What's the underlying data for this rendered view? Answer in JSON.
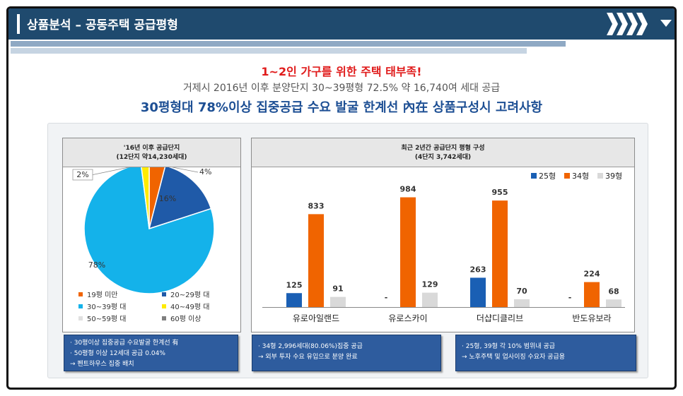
{
  "header": {
    "title": "상품분석 – 공동주택 공급평형"
  },
  "headline": {
    "line1": "1~2인 가구를 위한 주택 태부족!",
    "line2": "거제시 2016년 이후 분양단지 30~39평형 72.5% 약 16,740여 세대 공급",
    "line3": "30평형대 78%이상 집중공급 수요 발굴 한계선 內在  상품구성시 고려사항"
  },
  "colors": {
    "header_bg": "#1f4a6e",
    "blue": "#1a5fb4",
    "orange": "#f06400",
    "gray": "#d9d9d9",
    "sky": "#14b2ea",
    "yellow": "#ffeb00",
    "dark_blue": "#1f5aa8"
  },
  "chart_data": [
    {
      "type": "pie",
      "title_line1": "'16년 이후 공급단지",
      "title_line2": "(12단지 약14,230세대)",
      "slices": [
        {
          "name": "19평 미만",
          "value": 4,
          "label": "4%",
          "color": "#f06400"
        },
        {
          "name": "20~29평 대",
          "value": 16,
          "label": "16%",
          "color": "#1f5aa8"
        },
        {
          "name": "30~39평 대",
          "value": 78,
          "label": "78%",
          "color": "#14b2ea"
        },
        {
          "name": "40~49평 대",
          "value": 2,
          "label": "2%",
          "color": "#ffeb00"
        },
        {
          "name": "50~59평 대",
          "value": 0,
          "label": "",
          "color": "#e0e0e0"
        },
        {
          "name": "60평 이상",
          "value": 0,
          "label": "",
          "color": "#7f7f7f"
        }
      ],
      "legend_placement": "bottom"
    },
    {
      "type": "bar",
      "title_line1": "최근 2년간 공급단지 평형 구성",
      "title_line2": "(4단지 3,742세대)",
      "categories": [
        "유로아일랜드",
        "유로스카이",
        "더샵디클리브",
        "반도유보라"
      ],
      "series": [
        {
          "name": "25형",
          "color": "#1a5fb4",
          "values": [
            125,
            null,
            263,
            null
          ],
          "labels": [
            "125",
            "-",
            "263",
            "-"
          ]
        },
        {
          "name": "34형",
          "color": "#f06400",
          "values": [
            833,
            984,
            955,
            224
          ],
          "labels": [
            "833",
            "984",
            "955",
            "224"
          ]
        },
        {
          "name": "39형",
          "color": "#d9d9d9",
          "values": [
            91,
            129,
            70,
            68
          ],
          "labels": [
            "91",
            "129",
            "70",
            "68"
          ]
        }
      ],
      "ylim": [
        0,
        1000
      ],
      "legend_placement": "top-right"
    }
  ],
  "notes": [
    {
      "lines": [
        "· 30평이상 집중공급 수요발굴 한계선 有",
        "· 50평형 이상 12세대 공급 0.04%",
        "   → 펜트하우스 집중 배치"
      ]
    },
    {
      "lines": [
        "· 34형  2,996세대(80.06%)집중 공급",
        "   → 외부 투자 수요 유입으로 분양 완료"
      ]
    },
    {
      "lines": [
        "· 25형, 39형  각 10% 범위내 공급",
        "   → 노후주택 및 업사이징 수요자 공급용"
      ]
    }
  ]
}
